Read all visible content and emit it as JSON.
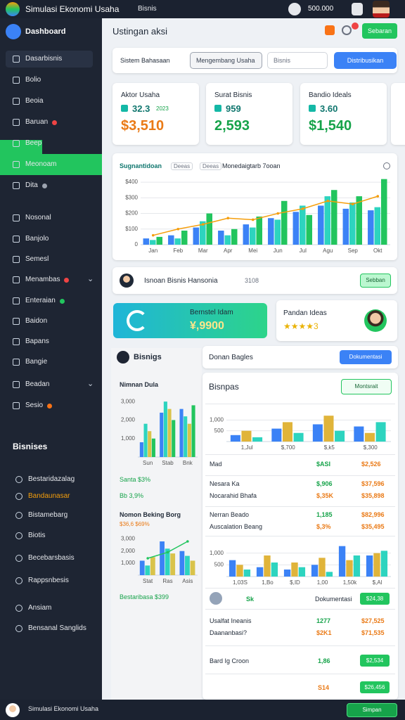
{
  "topbar": {
    "title": "Simulasi Ekonomi Usaha",
    "menu": "Bisnis",
    "balance": "500.000"
  },
  "sidebar": {
    "brand": "Dashboard",
    "items": [
      {
        "label": "Dasarbisnis"
      },
      {
        "label": "Bolio"
      },
      {
        "label": "Beoia"
      },
      {
        "label": "Baruan",
        "dot": "#ef4444"
      },
      {
        "label": "Beep"
      },
      {
        "label": "Meonoam"
      },
      {
        "label": "Dita",
        "dot": "#9ca3af"
      },
      {
        "label": "Nosonal"
      },
      {
        "label": "Banjolo"
      },
      {
        "label": "Semesl"
      },
      {
        "label": "Menambas",
        "dot": "#ef4444"
      },
      {
        "label": "Enteraian",
        "dot": "#22c55e"
      },
      {
        "label": "Baidon"
      },
      {
        "label": "Bapans"
      },
      {
        "label": "Bangie"
      },
      {
        "label": "Beadan"
      },
      {
        "label": "Sesio",
        "dot": "#f97316"
      }
    ],
    "section": "Bisnises",
    "section_items": [
      {
        "label": "Bestaridazalag"
      },
      {
        "label": "Bandaunasar",
        "color": "#f59e0b"
      },
      {
        "label": "Bistamebarg"
      },
      {
        "label": "Biotis"
      },
      {
        "label": "Becebarsbasis"
      },
      {
        "label": "Rappsnbesis"
      },
      {
        "label": "Ansiam"
      },
      {
        "label": "Bensanal Sanglids"
      }
    ]
  },
  "header": {
    "title": "Ustingan aksi",
    "button": "Sebaran"
  },
  "filter": {
    "label": "Sistem Bahasaan",
    "select1": "Mengembang Usaha",
    "select2": "Bisnis",
    "button": "Distribusikan"
  },
  "stats": [
    {
      "title": "Aktor Usaha",
      "small": "32.3",
      "small_note": "2023",
      "value": "$3,510",
      "color": "#ea7a16"
    },
    {
      "title": "Surat Bisnis",
      "small": "959",
      "small_note": "",
      "value": "2,593",
      "color": "#16a34a"
    },
    {
      "title": "Bandio Ideals",
      "small": "3.60",
      "small_note": "",
      "value": "$1,540",
      "color": "#16a34a"
    }
  ],
  "chart_title": "Sugnantidoan",
  "chart_legend": [
    "Deeas",
    "Monedaigtarb 7ooan"
  ],
  "person": {
    "name": "Isnoan Bisnis Hansonia",
    "number": "3108",
    "button": "Sebban"
  },
  "promo": {
    "title": "Bernstel Idam",
    "value": "¥,9900"
  },
  "rating": {
    "title": "Pandan Ideas",
    "stars": "★★★★3"
  },
  "left_panel": {
    "title": "Bisnigs",
    "chart1_title": "Nimnan Dula",
    "row1": "Santa $3%",
    "row2": "Bb 3,9%",
    "chart2_title": "Nomon Beking Borg",
    "chart2_sub": "$36,6 $69%",
    "footer": "Bestaribasa $399"
  },
  "right_header": {
    "title": "Donan Bagles",
    "button": "Dokumentasi"
  },
  "right_panel": {
    "title": "Bisnpas",
    "button": "Montsrait",
    "rows": [
      {
        "label": "Mad",
        "v1": "$ASI",
        "c1": "#16a34a",
        "v2": "$2,526"
      },
      {
        "label": "Nesara Ka",
        "v1": "$,906",
        "c1": "#16a34a",
        "v2": "$37,596"
      },
      {
        "label": "Nocarahid Bhafa",
        "v1": "$,35K",
        "c1": "#ea7a16",
        "v2": "$35,898"
      },
      {
        "label": "Nerran Beado",
        "v1": "1,185",
        "c1": "#16a34a",
        "v2": "$82,996"
      },
      {
        "label": "Auscalation Beang",
        "v1": "$,3%",
        "c1": "#ea7a16",
        "v2": "$35,495"
      }
    ],
    "doc_row": {
      "badge": "Sk",
      "label": "Dokumentasi",
      "button": "$24,38"
    },
    "rows2": [
      {
        "label": "Usalfat Ineanis",
        "v1": "1277",
        "c1": "#16a34a",
        "v2": "$27,525"
      },
      {
        "label": "Daananbasi?",
        "v1": "$2K1",
        "c1": "#ea7a16",
        "v2": "$71,535"
      }
    ],
    "row3": {
      "label": "Bard Ig Croon",
      "v1": "1,86",
      "button": "$2,534"
    },
    "row4": {
      "v1": "S14",
      "button": "$26,456"
    }
  },
  "bottombar": {
    "title": "Simulasi Ekonomi Usaha",
    "button": "Simpan"
  },
  "chart_data": [
    {
      "type": "bar",
      "categories": [
        "Jan",
        "Feb",
        "Mar",
        "Apr",
        "Mei",
        "Jun",
        "Jul",
        "Agu",
        "Sep",
        "Okt"
      ],
      "ylim": [
        0,
        450
      ],
      "yticks": [
        0,
        {
          "value": 100,
          "label": "$100"
        },
        {
          "value": 200,
          "label": "$200"
        },
        {
          "value": 300,
          "label": "$300"
        },
        {
          "value": 400,
          "label": "$400"
        }
      ],
      "grid": true,
      "series": [
        {
          "color": "#3b82f6",
          "values": [
            40,
            60,
            110,
            90,
            130,
            170,
            210,
            250,
            230,
            220
          ]
        },
        {
          "color": "#2dd4bf",
          "values": [
            30,
            40,
            150,
            60,
            110,
            160,
            250,
            310,
            270,
            240
          ]
        },
        {
          "color": "#22c55e",
          "values": [
            50,
            90,
            200,
            100,
            180,
            280,
            190,
            350,
            310,
            420
          ]
        },
        {
          "type": "line",
          "color": "#f59e0b",
          "values": [
            60,
            100,
            130,
            170,
            160,
            200,
            230,
            280,
            260,
            310
          ]
        }
      ]
    },
    {
      "type": "bar",
      "categories": [
        "Sun",
        "Stab",
        "Bnk"
      ],
      "ylim": [
        0,
        3500
      ],
      "yticks": [
        {
          "value": 1000,
          "label": "1,000"
        },
        {
          "value": 2000,
          "label": "2,000"
        },
        {
          "value": 3000,
          "label": "3,000"
        }
      ],
      "grid": false,
      "series": [
        {
          "color": "#3b82f6",
          "values": [
            800,
            2400,
            2600
          ]
        },
        {
          "color": "#2dd4bf",
          "values": [
            1800,
            3000,
            2200
          ]
        },
        {
          "color": "#d9c34a",
          "values": [
            1400,
            2600,
            1800
          ]
        },
        {
          "color": "#22c55e",
          "values": [
            1000,
            2000,
            2800
          ]
        }
      ]
    },
    {
      "type": "bar",
      "categories": [
        "Stat",
        "Ras",
        "Asis"
      ],
      "ylim": [
        0,
        3500
      ],
      "yticks": [
        {
          "value": 1000,
          "label": "1,000"
        },
        {
          "value": 2000,
          "label": "2,000"
        },
        {
          "value": 3000,
          "label": "3,000"
        }
      ],
      "grid": false,
      "series": [
        {
          "color": "#3b82f6",
          "values": [
            1200,
            2800,
            2000
          ]
        },
        {
          "color": "#2dd4bf",
          "values": [
            800,
            2200,
            1600
          ]
        },
        {
          "color": "#d9c34a",
          "values": [
            1500,
            1800,
            1200
          ]
        },
        {
          "type": "line",
          "color": "#22c55e",
          "values": [
            1400,
            1900,
            2800
          ]
        }
      ]
    },
    {
      "type": "bar",
      "categories": [
        "1,Jul",
        "$,700",
        "$,k5",
        "$,300"
      ],
      "ylim": [
        0,
        1500
      ],
      "yticks": [
        500,
        {
          "value": 1000,
          "label": "1,000"
        }
      ],
      "grid": true,
      "series": [
        {
          "color": "#3b82f6",
          "values": [
            300,
            600,
            800,
            700
          ]
        },
        {
          "color": "#e0b43a",
          "values": [
            500,
            900,
            1200,
            400
          ]
        },
        {
          "color": "#2dd4bf",
          "values": [
            200,
            400,
            500,
            900
          ]
        }
      ]
    },
    {
      "type": "bar",
      "categories": [
        "1,03S",
        "1,Bo",
        "$,ID",
        "1,00",
        "1,50k",
        "$,Al"
      ],
      "ylim": [
        0,
        1500
      ],
      "yticks": [
        500,
        {
          "value": 1000,
          "label": "1,000"
        }
      ],
      "grid": true,
      "series": [
        {
          "color": "#3b82f6",
          "values": [
            700,
            400,
            300,
            500,
            1300,
            900
          ]
        },
        {
          "color": "#e0b43a",
          "values": [
            500,
            900,
            600,
            800,
            700,
            1000
          ]
        },
        {
          "color": "#2dd4bf",
          "values": [
            300,
            600,
            400,
            200,
            900,
            1100
          ]
        }
      ]
    }
  ]
}
